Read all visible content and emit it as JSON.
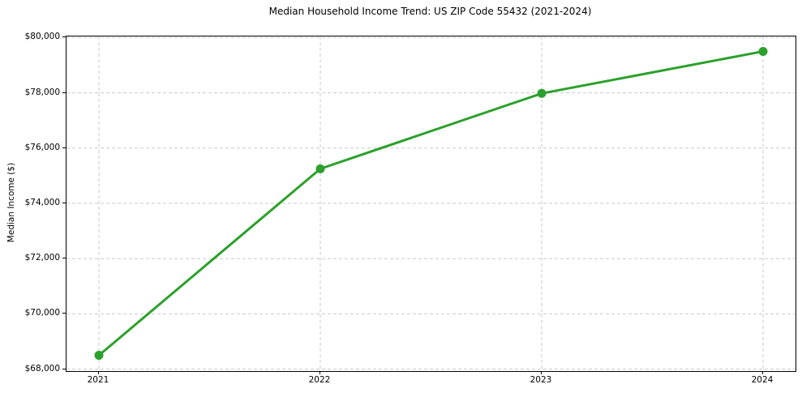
{
  "chart_data": {
    "type": "line",
    "title": "Median Household Income Trend: US ZIP Code 55432 (2021-2024)",
    "xlabel": "",
    "ylabel": "Median Income ($)",
    "categories": [
      "2021",
      "2022",
      "2023",
      "2024"
    ],
    "values": [
      68500,
      75250,
      77980,
      79500
    ],
    "ylim": [
      68000,
      80000
    ],
    "ytick_step": 2000,
    "ytick_values": [
      68000,
      70000,
      72000,
      74000,
      76000,
      78000,
      80000
    ],
    "ytick_labels": [
      "$68,000",
      "$70,000",
      "$72,000",
      "$74,000",
      "$76,000",
      "$78,000",
      "$80,000"
    ],
    "grid": true,
    "grid_axes": "both",
    "grid_style": "dashed",
    "grid_color": "#c9c9c9",
    "line_color": "#2ca02c",
    "marker": "circle",
    "marker_color": "#2ca02c",
    "spine_color": "#000000",
    "background": "#ffffff",
    "legend": "none"
  }
}
